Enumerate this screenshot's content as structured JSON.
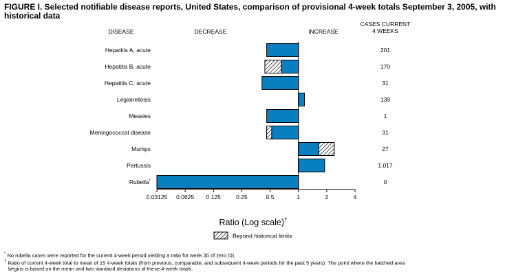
{
  "figure": {
    "title": "FIGURE I. Selected notifiable disease reports, United States, comparison of provisional 4-week totals September 3, 2005, with historical data"
  },
  "headers": {
    "disease": "DISEASE",
    "decrease": "DECREASE",
    "increase": "INCREASE",
    "cases_line1": "CASES CURRENT",
    "cases_line2": "4 WEEKS"
  },
  "legend": {
    "label": "Beyond historical limits"
  },
  "footnotes": {
    "star_mark": "*",
    "star_text": "No rubella cases were reported for the current 4-week period yielding a ratio for week 35 of zero (0).",
    "dagger_mark": "†",
    "dagger_text_line1": "Ratio of current 4-week total to mean of 15 4-week totals (from previous, comparable, and subsequent 4-week periods for the past 5 years). The point where the hatched area",
    "dagger_text_line2": "begins is based on the mean and two standard deviations of these 4-week totals."
  },
  "colors": {
    "bar_fill": "#0a7fc0",
    "bar_stroke": "#000000"
  },
  "chart_data": {
    "type": "bar",
    "orientation": "horizontal",
    "xscale": "log2",
    "xlim": [
      0.03125,
      4
    ],
    "xticks": [
      "0.03125",
      "0.0625",
      "0.125",
      "0.25",
      "0.5",
      "1",
      "2",
      "4"
    ],
    "xtick_values": [
      0.03125,
      0.0625,
      0.125,
      0.25,
      0.5,
      1,
      2,
      4
    ],
    "xlabel": "Ratio (Log scale)",
    "xlabel_mark": "†",
    "baseline": 1,
    "categories": [
      {
        "name": "Hepatitis A, acute",
        "mark": "",
        "ratio": 0.46,
        "hatch_from": null,
        "cases": "201"
      },
      {
        "name": "Hepatitis B, acute",
        "mark": "",
        "ratio": 0.44,
        "hatch_from": 0.66,
        "cases": "170"
      },
      {
        "name": "Hepatitis C, acute",
        "mark": "",
        "ratio": 0.41,
        "hatch_from": null,
        "cases": "31"
      },
      {
        "name": "Legionellosis",
        "mark": "",
        "ratio": 1.16,
        "hatch_from": null,
        "cases": "139"
      },
      {
        "name": "Measles",
        "mark": "",
        "ratio": 0.46,
        "hatch_from": null,
        "cases": "1"
      },
      {
        "name": "Meningococcal disease",
        "mark": "",
        "ratio": 0.46,
        "hatch_from": 0.52,
        "cases": "31"
      },
      {
        "name": "Mumps",
        "mark": "",
        "ratio": 2.4,
        "hatch_from": 1.65,
        "cases": "27"
      },
      {
        "name": "Pertussis",
        "mark": "",
        "ratio": 1.9,
        "hatch_from": null,
        "cases": "1,017"
      },
      {
        "name": "Rubella",
        "mark": "*",
        "ratio": 0.03125,
        "hatch_from": null,
        "cases": "0"
      }
    ]
  }
}
